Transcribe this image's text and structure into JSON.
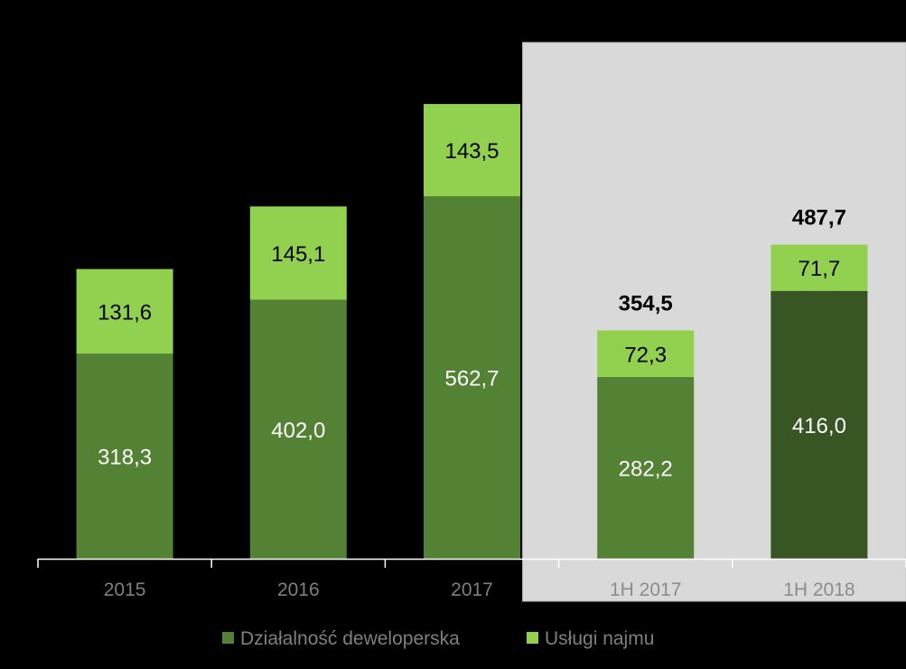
{
  "chart_data": {
    "type": "bar",
    "stacked": true,
    "categories": [
      "2015",
      "2016",
      "2017",
      "1H 2017",
      "1H 2018"
    ],
    "series": [
      {
        "name": "Działalność deweloperska",
        "values": [
          318.3,
          402.0,
          562.7,
          282.2,
          416.0
        ]
      },
      {
        "name": "Usługi najmu",
        "values": [
          131.6,
          145.1,
          143.5,
          72.3,
          71.7
        ]
      }
    ],
    "value_labels": [
      [
        "318,3",
        "402,0",
        "562,7",
        "282,2",
        "416,0"
      ],
      [
        "131,6",
        "145,1",
        "143,5",
        "72,3",
        "71,7"
      ]
    ],
    "totals": [
      null,
      null,
      null,
      354.5,
      487.7
    ],
    "total_labels": [
      "",
      "",
      "",
      "354,5",
      "487,7"
    ],
    "highlighted_categories": [
      "1H 2017",
      "1H 2018"
    ],
    "legend": {
      "position": "bottom"
    },
    "grid": false,
    "ylim": [
      0,
      820
    ]
  },
  "colors": {
    "background": "#000000",
    "series_dev": "#548235",
    "series_dev_emphasis": "#375623",
    "series_rent": "#92D050",
    "highlight_panel": "#D9D9D9",
    "axis": "#FFFFFF",
    "tick_text_normal": "#7F7F7F",
    "tick_text_highlight": "#8C8C8C",
    "label_on_dark": "#FFFFFF",
    "label_on_light": "#000000"
  }
}
